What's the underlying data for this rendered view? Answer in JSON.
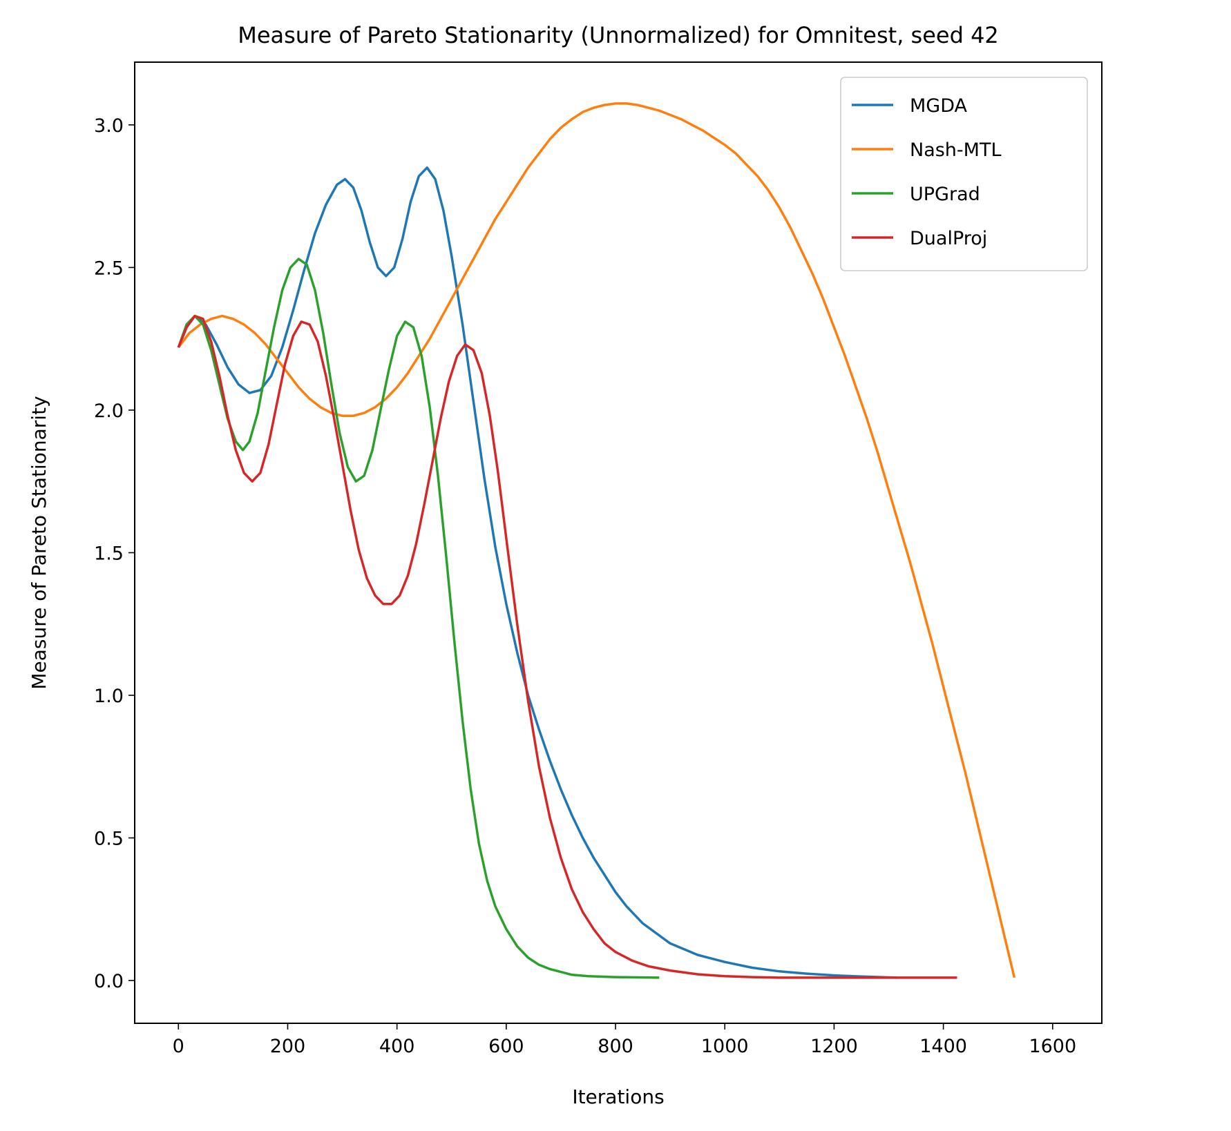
{
  "chart_data": {
    "type": "line",
    "title": "Measure of Pareto Stationarity (Unnormalized) for Omnitest, seed 42",
    "xlabel": "Iterations",
    "ylabel": "Measure of Pareto Stationarity",
    "xlim": [
      -80,
      1690
    ],
    "ylim": [
      -0.15,
      3.22
    ],
    "xticks": [
      0,
      200,
      400,
      600,
      800,
      1000,
      1200,
      1400,
      1600
    ],
    "yticks": [
      0.0,
      0.5,
      1.0,
      1.5,
      2.0,
      2.5,
      3.0
    ],
    "xtick_labels": [
      "0",
      "200",
      "400",
      "600",
      "800",
      "1000",
      "1200",
      "1400",
      "1600"
    ],
    "ytick_labels": [
      "0.0",
      "0.5",
      "1.0",
      "1.5",
      "2.0",
      "2.5",
      "3.0"
    ],
    "grid": false,
    "legend_position": "top-right",
    "series": [
      {
        "name": "MGDA",
        "color": "#1f77b4",
        "points": [
          [
            0,
            2.22
          ],
          [
            15,
            2.29
          ],
          [
            30,
            2.33
          ],
          [
            50,
            2.3
          ],
          [
            70,
            2.23
          ],
          [
            90,
            2.15
          ],
          [
            110,
            2.09
          ],
          [
            130,
            2.06
          ],
          [
            150,
            2.07
          ],
          [
            170,
            2.12
          ],
          [
            190,
            2.22
          ],
          [
            210,
            2.35
          ],
          [
            230,
            2.49
          ],
          [
            250,
            2.62
          ],
          [
            270,
            2.72
          ],
          [
            290,
            2.79
          ],
          [
            305,
            2.81
          ],
          [
            320,
            2.78
          ],
          [
            335,
            2.7
          ],
          [
            350,
            2.59
          ],
          [
            365,
            2.5
          ],
          [
            380,
            2.47
          ],
          [
            395,
            2.5
          ],
          [
            410,
            2.6
          ],
          [
            425,
            2.73
          ],
          [
            440,
            2.82
          ],
          [
            455,
            2.85
          ],
          [
            470,
            2.81
          ],
          [
            485,
            2.7
          ],
          [
            500,
            2.54
          ],
          [
            520,
            2.3
          ],
          [
            540,
            2.03
          ],
          [
            560,
            1.76
          ],
          [
            580,
            1.52
          ],
          [
            600,
            1.32
          ],
          [
            620,
            1.15
          ],
          [
            640,
            1.0
          ],
          [
            660,
            0.88
          ],
          [
            680,
            0.77
          ],
          [
            700,
            0.67
          ],
          [
            720,
            0.58
          ],
          [
            740,
            0.5
          ],
          [
            760,
            0.43
          ],
          [
            780,
            0.37
          ],
          [
            800,
            0.31
          ],
          [
            820,
            0.26
          ],
          [
            850,
            0.2
          ],
          [
            900,
            0.13
          ],
          [
            950,
            0.09
          ],
          [
            1000,
            0.065
          ],
          [
            1050,
            0.045
          ],
          [
            1100,
            0.032
          ],
          [
            1150,
            0.024
          ],
          [
            1200,
            0.018
          ],
          [
            1250,
            0.014
          ],
          [
            1315,
            0.01
          ]
        ]
      },
      {
        "name": "Nash-MTL",
        "color": "#ff7f0e",
        "points": [
          [
            0,
            2.22
          ],
          [
            20,
            2.27
          ],
          [
            40,
            2.3
          ],
          [
            60,
            2.32
          ],
          [
            80,
            2.33
          ],
          [
            100,
            2.32
          ],
          [
            120,
            2.3
          ],
          [
            140,
            2.27
          ],
          [
            160,
            2.23
          ],
          [
            180,
            2.18
          ],
          [
            200,
            2.13
          ],
          [
            220,
            2.08
          ],
          [
            240,
            2.04
          ],
          [
            260,
            2.01
          ],
          [
            280,
            1.99
          ],
          [
            300,
            1.98
          ],
          [
            320,
            1.98
          ],
          [
            340,
            1.99
          ],
          [
            360,
            2.01
          ],
          [
            380,
            2.04
          ],
          [
            400,
            2.08
          ],
          [
            420,
            2.13
          ],
          [
            440,
            2.19
          ],
          [
            460,
            2.25
          ],
          [
            480,
            2.32
          ],
          [
            500,
            2.39
          ],
          [
            520,
            2.46
          ],
          [
            540,
            2.53
          ],
          [
            560,
            2.6
          ],
          [
            580,
            2.67
          ],
          [
            600,
            2.73
          ],
          [
            620,
            2.79
          ],
          [
            640,
            2.85
          ],
          [
            660,
            2.9
          ],
          [
            680,
            2.95
          ],
          [
            700,
            2.99
          ],
          [
            720,
            3.02
          ],
          [
            740,
            3.045
          ],
          [
            760,
            3.06
          ],
          [
            780,
            3.07
          ],
          [
            800,
            3.075
          ],
          [
            820,
            3.075
          ],
          [
            840,
            3.07
          ],
          [
            860,
            3.06
          ],
          [
            880,
            3.05
          ],
          [
            900,
            3.035
          ],
          [
            920,
            3.02
          ],
          [
            940,
            3.0
          ],
          [
            960,
            2.98
          ],
          [
            980,
            2.955
          ],
          [
            1000,
            2.93
          ],
          [
            1020,
            2.9
          ],
          [
            1040,
            2.86
          ],
          [
            1060,
            2.82
          ],
          [
            1080,
            2.77
          ],
          [
            1100,
            2.71
          ],
          [
            1120,
            2.64
          ],
          [
            1140,
            2.56
          ],
          [
            1160,
            2.48
          ],
          [
            1180,
            2.39
          ],
          [
            1200,
            2.29
          ],
          [
            1220,
            2.19
          ],
          [
            1240,
            2.08
          ],
          [
            1260,
            1.97
          ],
          [
            1280,
            1.85
          ],
          [
            1300,
            1.72
          ],
          [
            1320,
            1.59
          ],
          [
            1340,
            1.46
          ],
          [
            1360,
            1.32
          ],
          [
            1380,
            1.18
          ],
          [
            1400,
            1.03
          ],
          [
            1420,
            0.88
          ],
          [
            1440,
            0.73
          ],
          [
            1460,
            0.57
          ],
          [
            1480,
            0.41
          ],
          [
            1500,
            0.25
          ],
          [
            1520,
            0.09
          ],
          [
            1530,
            0.01
          ]
        ]
      },
      {
        "name": "UPGrad",
        "color": "#2ca02c",
        "points": [
          [
            0,
            2.22
          ],
          [
            15,
            2.3
          ],
          [
            30,
            2.33
          ],
          [
            45,
            2.3
          ],
          [
            60,
            2.21
          ],
          [
            75,
            2.09
          ],
          [
            90,
            1.97
          ],
          [
            105,
            1.89
          ],
          [
            118,
            1.86
          ],
          [
            130,
            1.89
          ],
          [
            145,
            1.99
          ],
          [
            160,
            2.14
          ],
          [
            175,
            2.29
          ],
          [
            190,
            2.42
          ],
          [
            205,
            2.5
          ],
          [
            220,
            2.53
          ],
          [
            235,
            2.51
          ],
          [
            250,
            2.42
          ],
          [
            265,
            2.27
          ],
          [
            280,
            2.09
          ],
          [
            295,
            1.92
          ],
          [
            310,
            1.8
          ],
          [
            325,
            1.75
          ],
          [
            340,
            1.77
          ],
          [
            355,
            1.86
          ],
          [
            370,
            2.0
          ],
          [
            385,
            2.14
          ],
          [
            400,
            2.26
          ],
          [
            415,
            2.31
          ],
          [
            430,
            2.29
          ],
          [
            445,
            2.19
          ],
          [
            460,
            2.01
          ],
          [
            475,
            1.77
          ],
          [
            490,
            1.49
          ],
          [
            505,
            1.19
          ],
          [
            520,
            0.91
          ],
          [
            535,
            0.67
          ],
          [
            550,
            0.48
          ],
          [
            565,
            0.35
          ],
          [
            580,
            0.26
          ],
          [
            600,
            0.18
          ],
          [
            620,
            0.12
          ],
          [
            640,
            0.08
          ],
          [
            660,
            0.055
          ],
          [
            680,
            0.04
          ],
          [
            700,
            0.03
          ],
          [
            720,
            0.02
          ],
          [
            750,
            0.015
          ],
          [
            800,
            0.012
          ],
          [
            880,
            0.01
          ]
        ]
      },
      {
        "name": "DualProj",
        "color": "#d62728",
        "points": [
          [
            0,
            2.22
          ],
          [
            15,
            2.29
          ],
          [
            30,
            2.33
          ],
          [
            45,
            2.32
          ],
          [
            60,
            2.24
          ],
          [
            75,
            2.12
          ],
          [
            90,
            1.98
          ],
          [
            105,
            1.86
          ],
          [
            120,
            1.78
          ],
          [
            135,
            1.75
          ],
          [
            150,
            1.78
          ],
          [
            165,
            1.88
          ],
          [
            180,
            2.02
          ],
          [
            195,
            2.16
          ],
          [
            210,
            2.26
          ],
          [
            225,
            2.31
          ],
          [
            240,
            2.3
          ],
          [
            255,
            2.24
          ],
          [
            270,
            2.12
          ],
          [
            285,
            1.97
          ],
          [
            300,
            1.81
          ],
          [
            315,
            1.65
          ],
          [
            330,
            1.51
          ],
          [
            345,
            1.41
          ],
          [
            360,
            1.35
          ],
          [
            375,
            1.32
          ],
          [
            390,
            1.32
          ],
          [
            405,
            1.35
          ],
          [
            420,
            1.42
          ],
          [
            435,
            1.53
          ],
          [
            450,
            1.67
          ],
          [
            465,
            1.82
          ],
          [
            480,
            1.97
          ],
          [
            495,
            2.1
          ],
          [
            510,
            2.19
          ],
          [
            525,
            2.23
          ],
          [
            540,
            2.21
          ],
          [
            555,
            2.13
          ],
          [
            570,
            1.98
          ],
          [
            585,
            1.78
          ],
          [
            600,
            1.55
          ],
          [
            620,
            1.25
          ],
          [
            640,
            0.98
          ],
          [
            660,
            0.75
          ],
          [
            680,
            0.57
          ],
          [
            700,
            0.43
          ],
          [
            720,
            0.32
          ],
          [
            740,
            0.24
          ],
          [
            760,
            0.18
          ],
          [
            780,
            0.13
          ],
          [
            800,
            0.1
          ],
          [
            830,
            0.07
          ],
          [
            860,
            0.05
          ],
          [
            900,
            0.035
          ],
          [
            950,
            0.022
          ],
          [
            1000,
            0.015
          ],
          [
            1050,
            0.012
          ],
          [
            1100,
            0.01
          ],
          [
            1425,
            0.01
          ]
        ]
      }
    ]
  }
}
